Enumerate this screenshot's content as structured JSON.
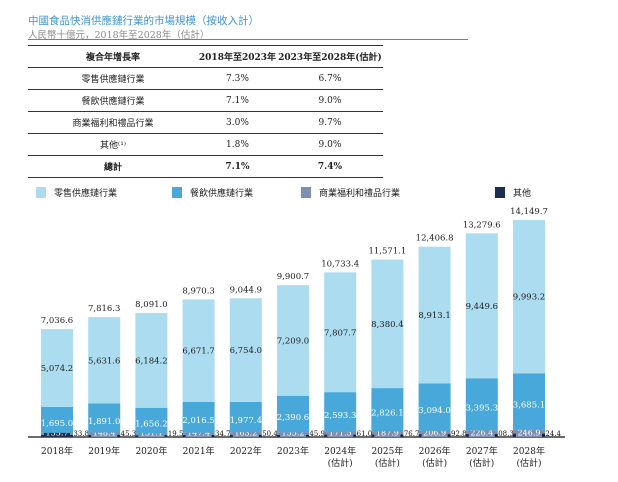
{
  "title": "中國食品快消供應鏈行業的市場規模（按收入計）",
  "subtitle": "人民幣十億元，2018年至2028年（估計）",
  "table": {
    "headers": [
      "複合年增長率",
      "2018年至2023年",
      "2023年至2028年(估計)"
    ],
    "rows": [
      [
        "零售供應鏈行業",
        "7.3%",
        "6.7%"
      ],
      [
        "餐飲供應鏈行業",
        "7.1%",
        "9.0%"
      ],
      [
        "商業福利和禮品行業",
        "3.0%",
        "9.7%"
      ],
      [
        "其他⁽¹⁾",
        "1.8%",
        "9.0%"
      ],
      [
        "總計",
        "7.1%",
        "7.4%"
      ]
    ]
  },
  "chart_data": {
    "type": "bar",
    "stacked": true,
    "categories": [
      "2018年",
      "2019年",
      "2020年",
      "2021年",
      "2022年",
      "2023年",
      "2024年\n(估計)",
      "2025年\n(估計)",
      "2026年\n(估計)",
      "2027年\n(估計)",
      "2028年\n(估計)"
    ],
    "series": [
      {
        "name": "其他",
        "color": "#1d2f50",
        "values": [
          133.8,
          145.3,
          119.5,
          134.7,
          150.4,
          145.9,
          161.0,
          176.7,
          192.8,
          208.3,
          224.4
        ],
        "labels": [
          "133.8",
          "145.3",
          "119.5",
          "134.7",
          "150.4",
          "145.9",
          "161.0",
          "176.7",
          "192.8",
          "208.3",
          "224.4"
        ]
      },
      {
        "name": "商業福利和禮品行業",
        "color": "#7d90b2",
        "values": [
          133.7,
          148.4,
          131.1,
          147.4,
          163.2,
          155.2,
          171.5,
          187.9,
          206.9,
          226.4,
          246.9
        ],
        "labels": [
          "133.7",
          "148.4",
          "131.1",
          "147.4",
          "163.2",
          "155.2",
          "171.5",
          "187.9",
          "206.9",
          "226.4",
          "246.9"
        ]
      },
      {
        "name": "餐飲供應鏈行業",
        "color": "#48a8da",
        "values": [
          1695.0,
          1891.0,
          1656.2,
          2016.5,
          1977.4,
          2390.6,
          2593.3,
          2826.1,
          3094.0,
          3395.3,
          3685.1
        ],
        "labels": [
          "1,695.0",
          "1,891.0",
          "1,656.2",
          "2,016.5",
          "1,977.4",
          "2,390.6",
          "2,593.3",
          "2,826.1",
          "3,094.0",
          "3,395.3",
          "3,685.1"
        ]
      },
      {
        "name": "零售供應鏈行業",
        "color": "#acdcf0",
        "values": [
          5074.2,
          5631.6,
          6184.2,
          6671.7,
          6754.0,
          7209.0,
          7807.7,
          8380.4,
          8913.1,
          9449.6,
          9993.2
        ],
        "labels": [
          "5,074.2",
          "5,631.6",
          "6,184.2",
          "6,671.7",
          "6,754.0",
          "7,209.0",
          "7,807.7",
          "8,380.4",
          "8,913.1",
          "9,449.6",
          "9,993.2"
        ]
      }
    ],
    "totals": [
      7036.6,
      7816.3,
      8091.0,
      8970.3,
      9044.9,
      9900.7,
      10733.4,
      11571.1,
      12406.8,
      13279.6,
      14149.7
    ],
    "total_labels": [
      "7,036.6",
      "7,816.3",
      "8,091.0",
      "8,970.3",
      "9,044.9",
      "9,900.7",
      "10,733.4",
      "11,571.1",
      "12,406.8",
      "13,279.6",
      "14,149.7"
    ],
    "legend": [
      "零售供應鏈行業",
      "餐飲供應鏈行業",
      "商業福利和禮品行業",
      "其他"
    ],
    "legend_placement": "top",
    "grid": false,
    "ylim": [
      0,
      14149.7
    ]
  }
}
